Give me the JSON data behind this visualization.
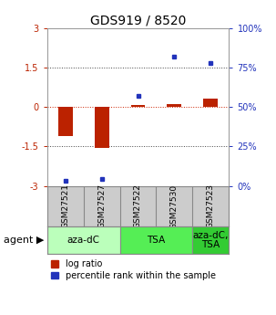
{
  "title": "GDS919 / 8520",
  "samples": [
    "GSM27521",
    "GSM27527",
    "GSM27522",
    "GSM27530",
    "GSM27523"
  ],
  "log_ratios": [
    -1.1,
    -1.55,
    0.08,
    0.12,
    0.32
  ],
  "percentile_ranks_pct": [
    3.0,
    4.5,
    57.0,
    82.0,
    78.0
  ],
  "agent_groups": [
    {
      "label": "aza-dC",
      "cols": [
        0,
        1
      ],
      "color": "#bbffbb"
    },
    {
      "label": "TSA",
      "cols": [
        2,
        3
      ],
      "color": "#55ee55"
    },
    {
      "label": "aza-dC,\nTSA",
      "cols": [
        4,
        4
      ],
      "color": "#33cc33"
    }
  ],
  "ylim_left": [
    -3,
    3
  ],
  "ylim_right": [
    0,
    100
  ],
  "yticks_left": [
    -3,
    -1.5,
    0,
    1.5,
    3
  ],
  "ytick_labels_left": [
    "-3",
    "-1.5",
    "0",
    "1.5",
    "3"
  ],
  "ytick_labels_right": [
    "0%",
    "25%",
    "50%",
    "75%",
    "100%"
  ],
  "yticks_right": [
    0,
    25,
    50,
    75,
    100
  ],
  "bar_color_red": "#bb2200",
  "bar_color_blue": "#2233bb",
  "dotted_color": "#444444",
  "zero_line_color": "#cc2200",
  "bg_color": "#ffffff",
  "plot_bg": "#ffffff",
  "sample_bg": "#cccccc",
  "title_fontsize": 10,
  "tick_fontsize": 7,
  "legend_fontsize": 7,
  "sample_fontsize": 6.5,
  "agent_fontsize": 7.5,
  "agent_label_fontsize": 8
}
